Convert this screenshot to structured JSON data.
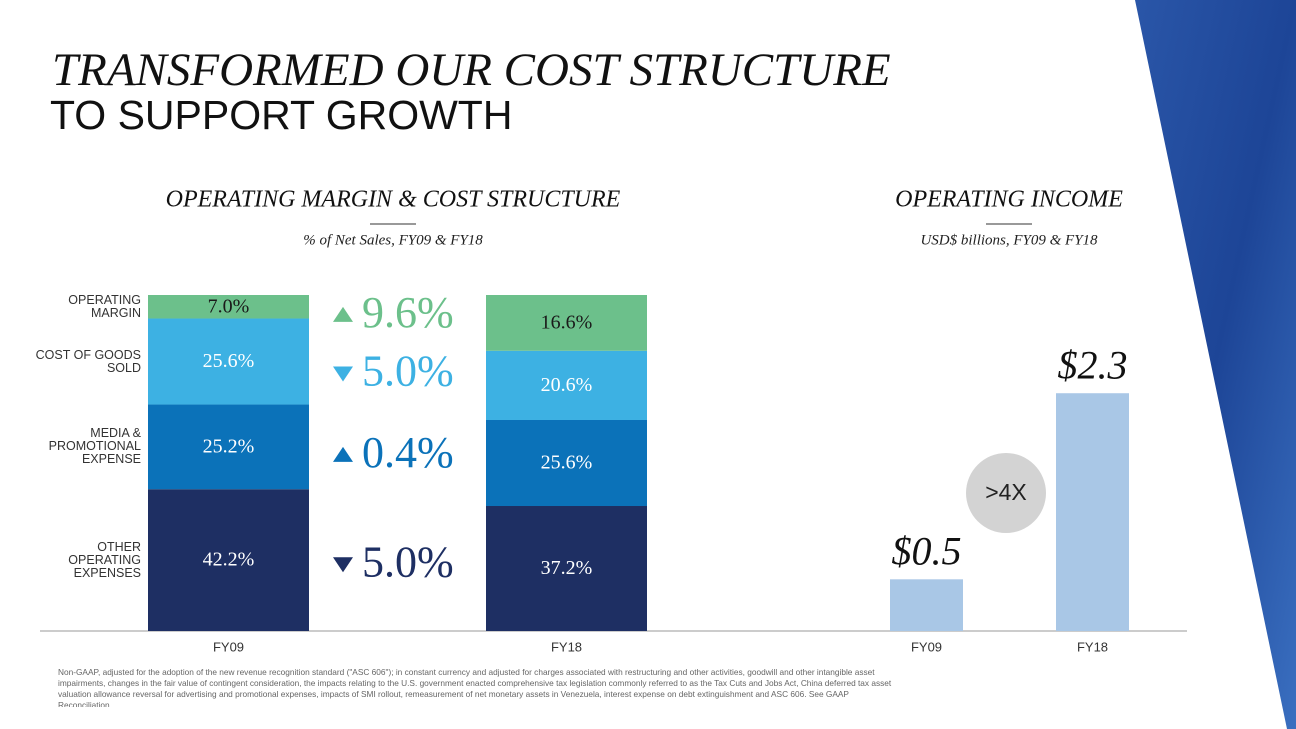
{
  "title": "TRANSFORMED OUR COST STRUCTURE",
  "subtitle": "TO SUPPORT GROWTH",
  "footnote": "Non-GAAP, adjusted for the adoption of the new revenue recognition standard (\"ASC 606\"); in constant currency and adjusted for charges associated with restructuring and other activities, goodwill and other intangible asset impairments, changes in the fair value of contingent consideration, the impacts relating to the U.S. government enacted comprehensive tax legislation commonly referred to as the Tax Cuts and Jobs Act, China deferred tax asset valuation allowance reversal for advertising and promotional expenses, impacts of SMI rollout, remeasurement of net monetary assets in Venezuela, interest expense on debt extinguishment and ASC 606. See GAAP Reconciliation.",
  "chart_data": [
    {
      "type": "stacked-bar",
      "title": "OPERATING MARGIN & COST STRUCTURE",
      "subtitle": "% of Net Sales, FY09 & FY18",
      "categories": [
        "FY09",
        "FY18"
      ],
      "ylim": [
        0,
        100
      ],
      "series": [
        {
          "name": "OPERATING MARGIN",
          "color": "#6cc08b",
          "label_color": "#1a1a1a",
          "values": [
            7.0,
            16.6
          ],
          "value_labels": [
            "7.0%",
            "16.6%"
          ],
          "change": {
            "label": "9.6%",
            "direction": "up"
          }
        },
        {
          "name": "COST OF GOODS SOLD",
          "color": "#3db1e3",
          "label_color": "#ffffff",
          "values": [
            25.6,
            20.6
          ],
          "value_labels": [
            "25.6%",
            "20.6%"
          ],
          "change": {
            "label": "5.0%",
            "direction": "down"
          }
        },
        {
          "name": "MEDIA & PROMOTIONAL EXPENSE",
          "color": "#0b72b9",
          "label_color": "#ffffff",
          "values": [
            25.2,
            25.6
          ],
          "value_labels": [
            "25.2%",
            "25.6%"
          ],
          "change": {
            "label": "0.4%",
            "direction": "up"
          }
        },
        {
          "name": "OTHER OPERATING EXPENSES",
          "color": "#1e2f63",
          "label_color": "#ffffff",
          "values": [
            42.2,
            37.2
          ],
          "value_labels": [
            "42.2%",
            "37.2%"
          ],
          "change": {
            "label": "5.0%",
            "direction": "down"
          }
        }
      ]
    },
    {
      "type": "bar",
      "title": "OPERATING INCOME",
      "subtitle": "USD$ billions, FY09 & FY18",
      "categories": [
        "FY09",
        "FY18"
      ],
      "values": [
        0.5,
        2.3
      ],
      "value_labels": [
        "$0.5",
        "$2.3"
      ],
      "color": "#a9c7e6",
      "ylim": [
        0,
        3.25
      ],
      "annotation": ">4X"
    }
  ]
}
